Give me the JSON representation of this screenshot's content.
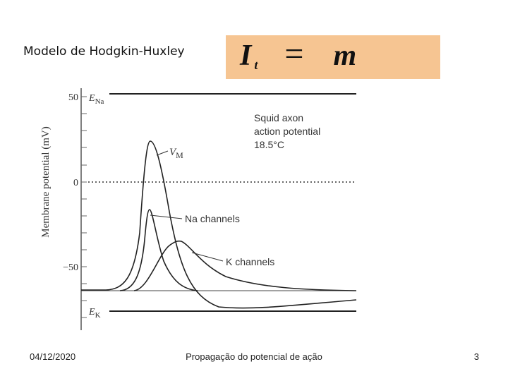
{
  "header": {
    "title": "Modelo de Hodgkin-Huxley"
  },
  "equation": {
    "current": "I",
    "subscript": "t",
    "operator": "=",
    "gate": "m"
  },
  "figure": {
    "y_axis_label": "Membrane potential (mV)",
    "y_ticks": [
      "50",
      "0",
      "−50"
    ],
    "e_na": {
      "symbol": "E",
      "subscript": "Na"
    },
    "e_k": {
      "symbol": "E",
      "subscript": "K"
    },
    "caption_lines": [
      "Squid axon",
      "action potential",
      "18.5°C"
    ],
    "vm": {
      "symbol": "V",
      "subscript": "M"
    },
    "na_label": "Na channels",
    "k_label": "K channels"
  },
  "footer": {
    "date": "04/12/2020",
    "text": "Propagação do potencial de ação",
    "page": "3"
  }
}
